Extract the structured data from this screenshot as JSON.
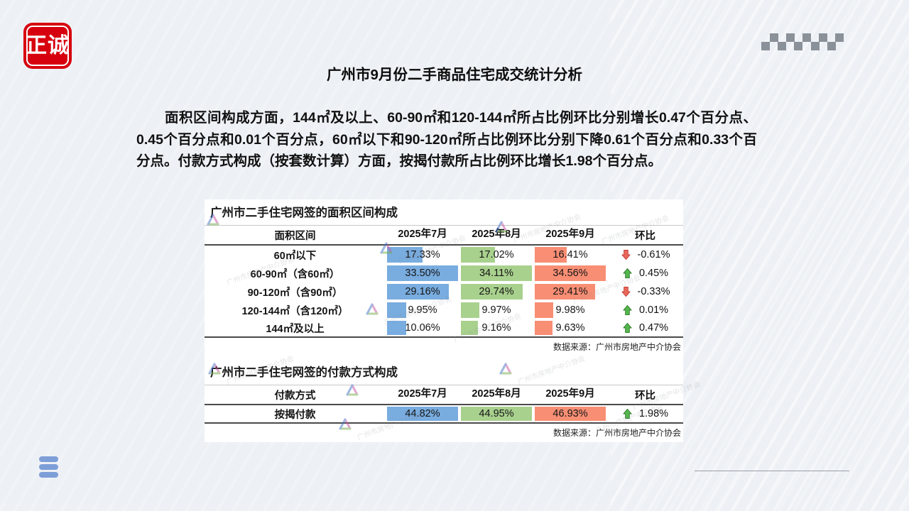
{
  "logo": {
    "text": "正诚"
  },
  "title": "广州市9月份二手商品住宅成交统计分析",
  "paragraph": "面积区间构成方面，144㎡及以上、60-90㎡和120-144㎡所占比例环比分别增长0.47个百分点、0.45个百分点和0.01个百分点，60㎡以下和90-120㎡所占比例环比分别下降0.61个百分点和0.33个百分点。付款方式构成（按套数计算）方面，按揭付款所占比例环比增长1.98个百分点。",
  "watermark": {
    "org": "广州市房地产中介协会"
  },
  "colors": {
    "bar_jul": "#79acdf",
    "bar_aug": "#a9d18e",
    "bar_sep": "#f88e74",
    "arrow_up_fill": "#55b54e",
    "arrow_up_stroke": "#2f7d2b",
    "arrow_down_fill": "#e9685c",
    "arrow_down_stroke": "#c23b30",
    "logo_red": "#d7000f"
  },
  "tables": [
    {
      "title": "广州市二手住宅网签的面积区间构成",
      "columns": [
        "面积区间",
        "2025年7月",
        "2025年8月",
        "2025年9月",
        "环比"
      ],
      "rows": [
        {
          "label": "60㎡以下",
          "values": [
            "17.33%",
            "17.02%",
            "16.41%"
          ],
          "mom_dir": "down",
          "mom": "-0.61%"
        },
        {
          "label": "60-90㎡（含60㎡）",
          "values": [
            "33.50%",
            "34.11%",
            "34.56%"
          ],
          "mom_dir": "up",
          "mom": "0.45%"
        },
        {
          "label": "90-120㎡（含90㎡）",
          "values": [
            "29.16%",
            "29.74%",
            "29.41%"
          ],
          "mom_dir": "down",
          "mom": "-0.33%"
        },
        {
          "label": "120-144㎡（含120㎡）",
          "values": [
            "9.95%",
            "9.97%",
            "9.98%"
          ],
          "mom_dir": "up",
          "mom": "0.01%"
        },
        {
          "label": "144㎡及以上",
          "values": [
            "10.06%",
            "9.16%",
            "9.63%"
          ],
          "mom_dir": "up",
          "mom": "0.47%"
        }
      ],
      "source": "数据来源：广州市房地产中介协会"
    },
    {
      "title": "广州市二手住宅网签的付款方式构成",
      "columns": [
        "付款方式",
        "2025年7月",
        "2025年8月",
        "2025年9月",
        "环比"
      ],
      "rows": [
        {
          "label": "按揭付款",
          "values": [
            "44.82%",
            "44.95%",
            "46.93%"
          ],
          "mom_dir": "up",
          "mom": "1.98%"
        }
      ],
      "source": "数据来源：广州市房地产中介协会"
    }
  ]
}
